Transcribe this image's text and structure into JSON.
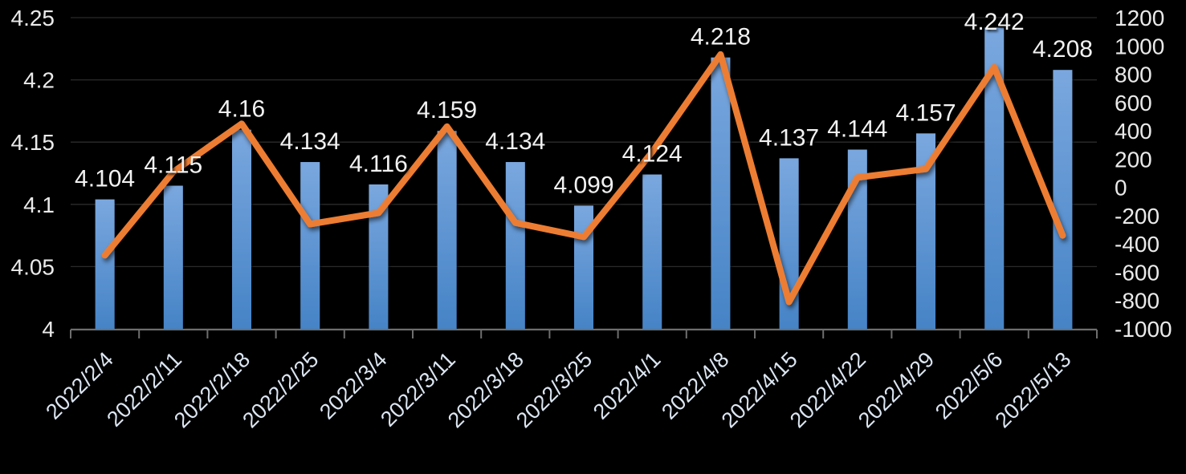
{
  "chart_data": {
    "type": "combo",
    "categories": [
      "2022/2/4",
      "2022/2/11",
      "2022/2/18",
      "2022/2/25",
      "2022/3/4",
      "2022/3/11",
      "2022/3/18",
      "2022/3/25",
      "2022/4/1",
      "2022/4/8",
      "2022/4/15",
      "2022/4/22",
      "2022/4/29",
      "2022/5/6",
      "2022/5/13"
    ],
    "series": [
      {
        "name": "bar-series",
        "type": "bar",
        "axis": "left",
        "values": [
          4.104,
          4.115,
          4.16,
          4.134,
          4.116,
          4.159,
          4.134,
          4.099,
          4.124,
          4.218,
          4.137,
          4.144,
          4.157,
          4.242,
          4.208
        ],
        "data_labels": [
          "4.104",
          "4.115",
          "4.16",
          "4.134",
          "4.116",
          "4.159",
          "4.134",
          "4.099",
          "4.124",
          "4.218",
          "4.137",
          "4.144",
          "4.157",
          "4.242",
          "4.208"
        ]
      },
      {
        "name": "line-series",
        "type": "line",
        "axis": "right",
        "values": [
          -480,
          110,
          450,
          -260,
          -180,
          430,
          -250,
          -350,
          250,
          940,
          -810,
          70,
          130,
          850,
          -340
        ]
      }
    ],
    "left_axis": {
      "min": 4,
      "max": 4.25,
      "ticks": [
        "4.25",
        "4.2",
        "4.15",
        "4.1",
        "4.05",
        "4"
      ]
    },
    "right_axis": {
      "min": -1000,
      "max": 1200,
      "ticks": [
        "1200",
        "1000",
        "800",
        "600",
        "400",
        "200",
        "0",
        "-200",
        "-400",
        "-600",
        "-800",
        "-1000"
      ]
    },
    "grid": true,
    "legend": "none",
    "colors": {
      "background": "#000000",
      "bar_top": "#7AA7DE",
      "bar_bottom": "#4583C6",
      "line": "#ED7D31",
      "gridline": "#2B2B2B",
      "axis": "#6E6E6E",
      "y_axis_text": "#EAEAEA",
      "x_axis_text": "#DCE6F2",
      "data_label_text": "#F2F2F2"
    }
  }
}
